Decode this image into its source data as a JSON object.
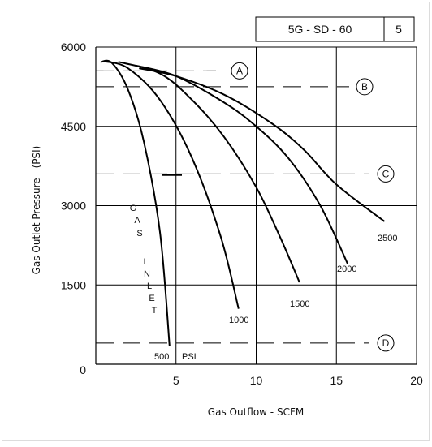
{
  "header": {
    "code": "5G - SD - 60",
    "page_number": "5"
  },
  "chart_data": {
    "type": "line",
    "title": "",
    "xlabel": "Gas Outflow - SCFM",
    "ylabel": "Gas Outlet Pressure - (PSI)",
    "xlim": [
      0,
      20
    ],
    "ylim": [
      0,
      6000
    ],
    "xticks": [
      "5",
      "10",
      "15",
      "20"
    ],
    "yticks": [
      "0",
      "1500",
      "3000",
      "4500",
      "6000"
    ],
    "grid": true,
    "inlet_label": "GAS INLET",
    "inlet_unit": "PSI",
    "series": [
      {
        "name": "500",
        "points": [
          [
            0.3,
            5720
          ],
          [
            1.0,
            5700
          ],
          [
            2.0,
            5200
          ],
          [
            3.0,
            4200
          ],
          [
            4.0,
            2500
          ],
          [
            4.6,
            350
          ]
        ]
      },
      {
        "name": "1000",
        "points": [
          [
            0.5,
            5730
          ],
          [
            2.0,
            5600
          ],
          [
            4.0,
            5000
          ],
          [
            6.0,
            3900
          ],
          [
            7.8,
            2400
          ],
          [
            8.9,
            1050
          ]
        ]
      },
      {
        "name": "1500",
        "points": [
          [
            1.4,
            5720
          ],
          [
            4.0,
            5500
          ],
          [
            6.0,
            5000
          ],
          [
            8.0,
            4300
          ],
          [
            10.0,
            3350
          ],
          [
            11.5,
            2400
          ],
          [
            12.7,
            1550
          ]
        ]
      },
      {
        "name": "2000",
        "points": [
          [
            2.5,
            5650
          ],
          [
            5.0,
            5450
          ],
          [
            8.0,
            4950
          ],
          [
            10.0,
            4500
          ],
          [
            12.0,
            3900
          ],
          [
            14.0,
            3000
          ],
          [
            15.7,
            1900
          ]
        ]
      },
      {
        "name": "2500",
        "points": [
          [
            2.7,
            5600
          ],
          [
            5.0,
            5450
          ],
          [
            8.0,
            5100
          ],
          [
            11.0,
            4550
          ],
          [
            13.0,
            4050
          ],
          [
            15.0,
            3400
          ],
          [
            18.0,
            2700
          ]
        ]
      }
    ],
    "reference_lines": [
      {
        "label": "A",
        "y": 5550
      },
      {
        "label": "B",
        "y": 5250
      },
      {
        "label": "C",
        "y": 3600
      },
      {
        "label": "D",
        "y": 400
      }
    ]
  }
}
